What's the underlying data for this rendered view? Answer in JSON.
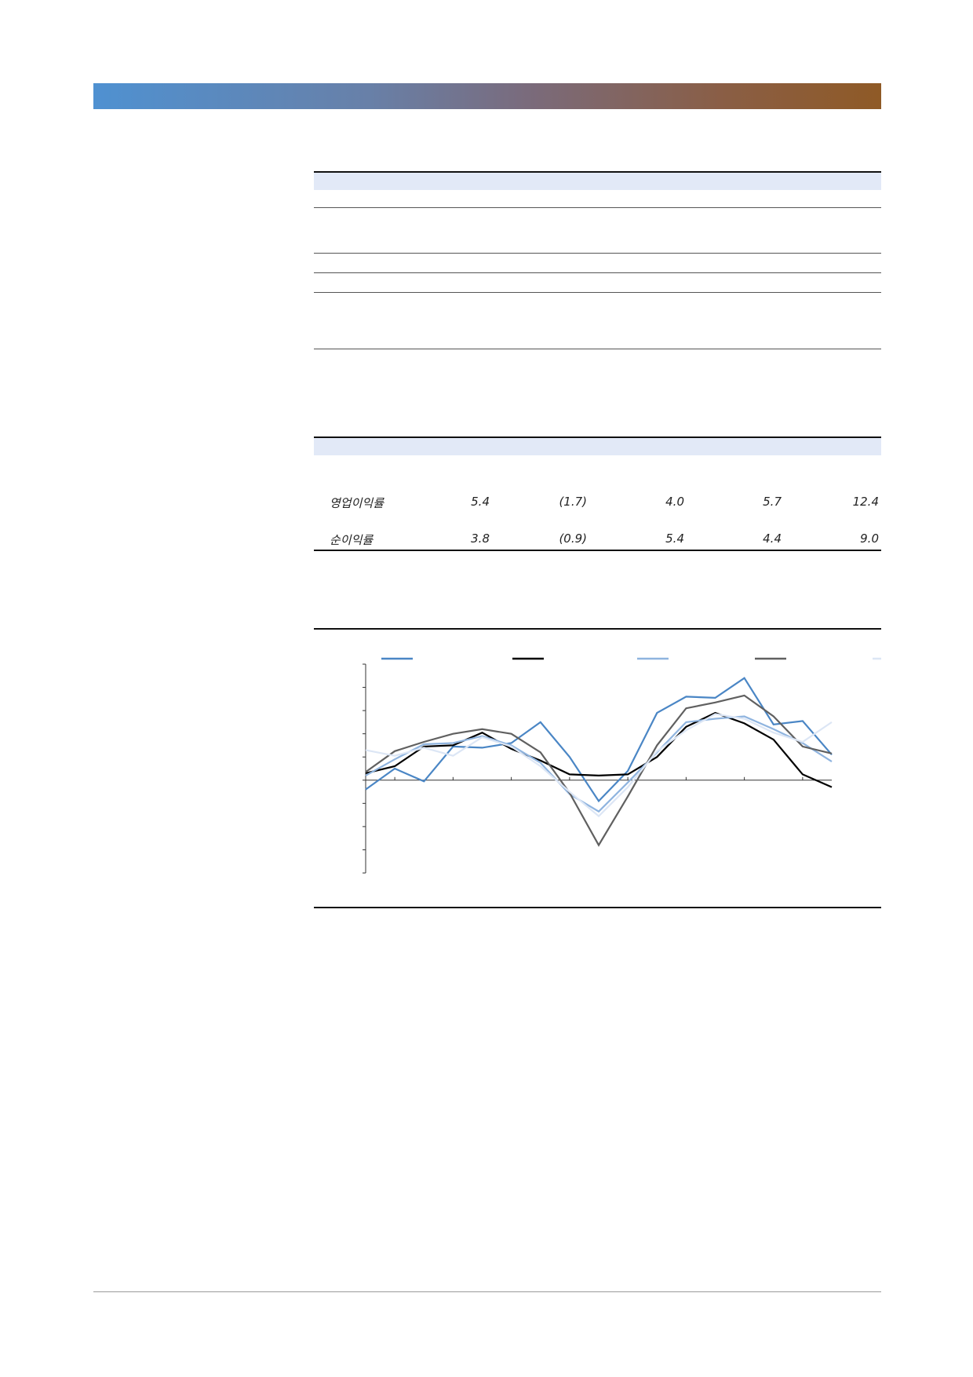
{
  "metrics_table": {
    "rows": [
      {
        "label": "영업이익률",
        "values": [
          "5.4",
          "(1.7)",
          "4.0",
          "5.7",
          "12.4"
        ]
      },
      {
        "label": "순이익률",
        "values": [
          "3.8",
          "(0.9)",
          "5.4",
          "4.4",
          "9.0"
        ]
      }
    ]
  },
  "chart_data": {
    "type": "line",
    "x": [
      0,
      1,
      2,
      3,
      4,
      5,
      6,
      7,
      8,
      9,
      10,
      11,
      12,
      13,
      14,
      15,
      16
    ],
    "ylim": [
      -4,
      5
    ],
    "grid": false,
    "series": [
      {
        "color": "#4a86c5",
        "width": 2.2,
        "values": [
          -0.4,
          0.5,
          -0.05,
          1.45,
          1.4,
          1.6,
          2.5,
          1.0,
          -0.9,
          0.4,
          2.9,
          3.6,
          3.55,
          4.4,
          2.4,
          2.55,
          1.1
        ]
      },
      {
        "color": "#000000",
        "width": 2.2,
        "values": [
          0.3,
          0.6,
          1.45,
          1.5,
          2.05,
          1.35,
          0.85,
          0.25,
          0.2,
          0.25,
          1.0,
          2.3,
          2.9,
          2.45,
          1.75,
          0.25,
          -0.3
        ]
      },
      {
        "color": "#8fb4df",
        "width": 2.2,
        "values": [
          0.2,
          0.9,
          1.55,
          1.6,
          1.9,
          1.5,
          0.75,
          -0.6,
          -1.35,
          -0.1,
          1.2,
          2.5,
          2.65,
          2.75,
          2.2,
          1.6,
          0.8
        ]
      },
      {
        "color": "#606060",
        "width": 2.2,
        "values": [
          0.35,
          1.25,
          1.65,
          2.0,
          2.2,
          2.0,
          1.2,
          -0.55,
          -2.8,
          -0.7,
          1.5,
          3.1,
          3.35,
          3.65,
          2.75,
          1.45,
          1.15
        ]
      },
      {
        "color": "#dce6f5",
        "width": 2.2,
        "values": [
          1.3,
          1.05,
          1.4,
          1.05,
          1.85,
          1.45,
          0.6,
          -0.5,
          -1.55,
          -0.3,
          1.25,
          2.15,
          2.85,
          2.65,
          2.05,
          1.65,
          2.5
        ]
      }
    ],
    "legend_placement": "top"
  }
}
